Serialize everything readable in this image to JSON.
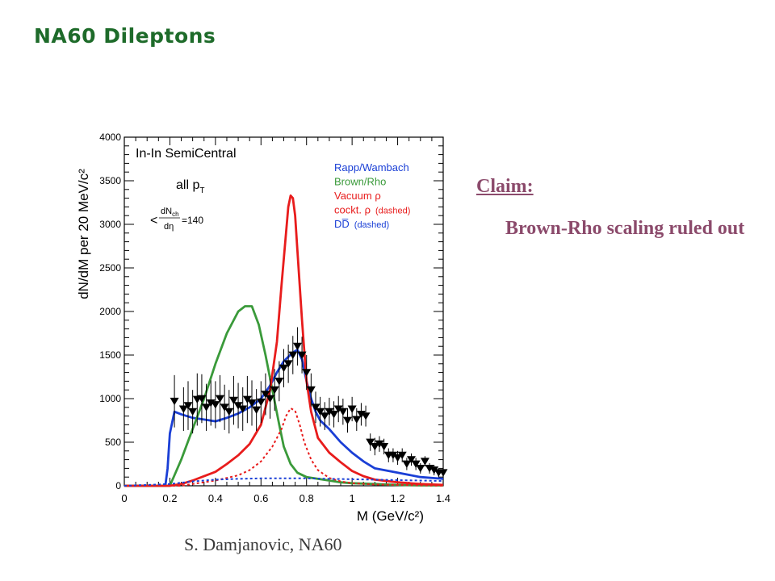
{
  "slide": {
    "title": "NA60 Dileptons",
    "claim_heading": "Claim:",
    "claim_text": "Brown-Rho scaling ruled out",
    "credit": "S. Damjanovic, NA60"
  },
  "chart_data": {
    "type": "line",
    "title": "In-In SemiCentral",
    "annotation_pt": "all p",
    "annotation_pt_sub": "T",
    "annotation_mult_num": "dN",
    "annotation_mult_sub": "ch",
    "annotation_mult_den": "dη",
    "annotation_mult_value": "=140",
    "xlabel": "M (GeV/c²)",
    "ylabel": "dN/dM per 20 MeV/c²",
    "xlim": [
      0,
      1.4
    ],
    "ylim": [
      0,
      4000
    ],
    "x_ticks": [
      "0",
      "0.2",
      "0.4",
      "0.6",
      "0.8",
      "1",
      "1.2",
      "1.4"
    ],
    "y_ticks": [
      "0",
      "500",
      "1000",
      "1500",
      "2000",
      "2500",
      "3000",
      "3500",
      "4000"
    ],
    "legend": [
      {
        "label": "Rapp/Wambach",
        "suffix": "",
        "color": "#1a3fd6"
      },
      {
        "label": "Brown/Rho",
        "suffix": "",
        "color": "#3a9a3a"
      },
      {
        "label": "Vacuum ρ",
        "suffix": "",
        "color": "#e81c1c"
      },
      {
        "label": "cockt. ρ",
        "suffix": "(dashed)",
        "color": "#e81c1c"
      },
      {
        "label": "DD̅",
        "suffix": "(dashed)",
        "color": "#1a3fd6"
      }
    ],
    "legend_position": "top-right",
    "series": [
      {
        "name": "Rapp/Wambach",
        "color": "#1a3fd6",
        "style": "solid",
        "x": [
          0,
          0.18,
          0.19,
          0.2,
          0.22,
          0.25,
          0.3,
          0.35,
          0.4,
          0.45,
          0.5,
          0.55,
          0.6,
          0.64,
          0.67,
          0.7,
          0.72,
          0.74,
          0.76,
          0.78,
          0.8,
          0.82,
          0.84,
          0.86,
          0.9,
          0.95,
          1.0,
          1.05,
          1.1,
          1.2,
          1.3,
          1.4
        ],
        "y": [
          0,
          0,
          200,
          600,
          850,
          820,
          780,
          760,
          740,
          780,
          830,
          900,
          1000,
          1150,
          1300,
          1430,
          1480,
          1530,
          1560,
          1450,
          1200,
          1000,
          850,
          750,
          650,
          500,
          380,
          280,
          200,
          150,
          100,
          80
        ]
      },
      {
        "name": "Brown/Rho",
        "color": "#3a9a3a",
        "style": "solid",
        "x": [
          0,
          0.2,
          0.22,
          0.25,
          0.3,
          0.35,
          0.4,
          0.45,
          0.5,
          0.53,
          0.56,
          0.59,
          0.62,
          0.65,
          0.68,
          0.7,
          0.73,
          0.76,
          0.8,
          0.85,
          0.9,
          0.95,
          1.0,
          1.1,
          1.2,
          1.3,
          1.4
        ],
        "y": [
          0,
          0,
          120,
          300,
          650,
          1000,
          1400,
          1750,
          2000,
          2060,
          2060,
          1850,
          1500,
          1100,
          700,
          450,
          250,
          150,
          100,
          80,
          60,
          40,
          30,
          20,
          10,
          5,
          5
        ]
      },
      {
        "name": "Vacuum ρ",
        "color": "#e81c1c",
        "style": "solid",
        "x": [
          0,
          0.2,
          0.25,
          0.3,
          0.35,
          0.4,
          0.45,
          0.5,
          0.55,
          0.6,
          0.64,
          0.67,
          0.69,
          0.71,
          0.72,
          0.73,
          0.74,
          0.75,
          0.76,
          0.78,
          0.8,
          0.82,
          0.85,
          0.9,
          0.95,
          1.0,
          1.05,
          1.1,
          1.2,
          1.3,
          1.4
        ],
        "y": [
          0,
          0,
          20,
          60,
          110,
          160,
          250,
          350,
          480,
          700,
          1100,
          1650,
          2300,
          2900,
          3200,
          3330,
          3300,
          3100,
          2700,
          1900,
          1200,
          850,
          550,
          380,
          270,
          170,
          110,
          70,
          40,
          20,
          10
        ]
      },
      {
        "name": "cockt. ρ",
        "color": "#e81c1c",
        "style": "dashed",
        "x": [
          0,
          0.25,
          0.3,
          0.4,
          0.5,
          0.55,
          0.6,
          0.65,
          0.69,
          0.71,
          0.73,
          0.75,
          0.77,
          0.79,
          0.82,
          0.85,
          0.9,
          0.95,
          1.0,
          1.1,
          1.2,
          1.3,
          1.4
        ],
        "y": [
          0,
          0,
          20,
          60,
          120,
          180,
          280,
          450,
          650,
          800,
          890,
          860,
          700,
          500,
          300,
          180,
          90,
          50,
          30,
          15,
          10,
          5,
          0
        ]
      },
      {
        "name": "DD̅",
        "color": "#1a3fd6",
        "style": "dashed",
        "x": [
          0,
          0.2,
          0.3,
          0.4,
          0.5,
          0.6,
          0.7,
          0.8,
          0.9,
          1.0,
          1.1,
          1.2,
          1.3,
          1.4
        ],
        "y": [
          0,
          20,
          50,
          70,
          80,
          85,
          85,
          85,
          80,
          75,
          70,
          65,
          60,
          55
        ]
      }
    ],
    "data_points": {
      "name": "NA60 data",
      "color": "#000000",
      "x": [
        0.22,
        0.26,
        0.28,
        0.3,
        0.32,
        0.34,
        0.36,
        0.38,
        0.4,
        0.42,
        0.44,
        0.46,
        0.48,
        0.5,
        0.52,
        0.54,
        0.56,
        0.58,
        0.6,
        0.62,
        0.64,
        0.66,
        0.68,
        0.7,
        0.72,
        0.74,
        0.76,
        0.78,
        0.8,
        0.82,
        0.84,
        0.86,
        0.88,
        0.9,
        0.92,
        0.94,
        0.96,
        0.98,
        1.0,
        1.02,
        1.04,
        1.06,
        1.08,
        1.1,
        1.12,
        1.14,
        1.16,
        1.18,
        1.2,
        1.22,
        1.24,
        1.26,
        1.28,
        1.3,
        1.32,
        1.34,
        1.36,
        1.38,
        1.4
      ],
      "y": [
        970,
        880,
        920,
        850,
        990,
        1000,
        900,
        950,
        930,
        1000,
        900,
        850,
        980,
        920,
        880,
        990,
        950,
        870,
        960,
        1050,
        1000,
        1100,
        1200,
        1350,
        1400,
        1500,
        1600,
        1500,
        1300,
        1100,
        900,
        850,
        800,
        850,
        820,
        880,
        850,
        750,
        880,
        760,
        820,
        800,
        500,
        450,
        480,
        450,
        350,
        350,
        320,
        350,
        250,
        300,
        250,
        200,
        280,
        200,
        180,
        150,
        150
      ],
      "err": [
        300,
        250,
        280,
        250,
        300,
        280,
        270,
        260,
        270,
        270,
        260,
        250,
        280,
        260,
        250,
        270,
        260,
        240,
        240,
        240,
        230,
        240,
        230,
        220,
        220,
        220,
        220,
        210,
        200,
        190,
        180,
        170,
        160,
        160,
        150,
        150,
        150,
        140,
        140,
        130,
        130,
        120,
        100,
        100,
        90,
        90,
        80,
        80,
        80,
        80,
        70,
        70,
        70,
        60,
        60,
        60,
        60,
        50,
        50
      ]
    }
  }
}
